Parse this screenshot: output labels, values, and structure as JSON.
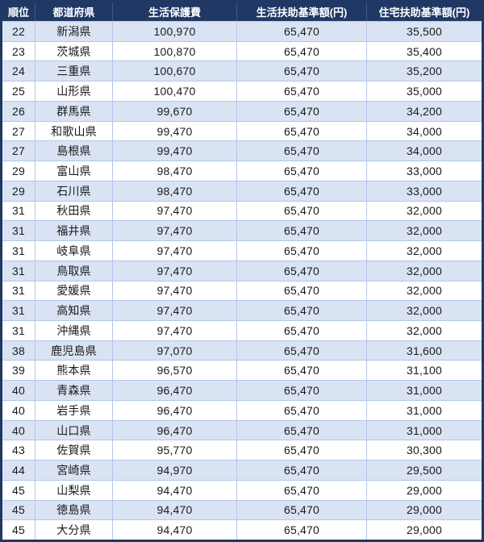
{
  "colors": {
    "navy": "#1f3864",
    "grid": "#b4c6e7",
    "row-alt": "#dae3f3",
    "row-plain": "#ffffff",
    "header-sep": "#3f5787",
    "body-text": "#1a1a1a"
  },
  "chart_data": {
    "type": "table",
    "columns": [
      "順位",
      "都道府県",
      "生活保護費",
      "生活扶助基準額(円)",
      "住宅扶助基準額(円)"
    ],
    "rows": [
      {
        "rank": "22",
        "pref": "新潟県",
        "hogo": "100,970",
        "fujo": "65,470",
        "jutaku": "35,500"
      },
      {
        "rank": "23",
        "pref": "茨城県",
        "hogo": "100,870",
        "fujo": "65,470",
        "jutaku": "35,400"
      },
      {
        "rank": "24",
        "pref": "三重県",
        "hogo": "100,670",
        "fujo": "65,470",
        "jutaku": "35,200"
      },
      {
        "rank": "25",
        "pref": "山形県",
        "hogo": "100,470",
        "fujo": "65,470",
        "jutaku": "35,000"
      },
      {
        "rank": "26",
        "pref": "群馬県",
        "hogo": "99,670",
        "fujo": "65,470",
        "jutaku": "34,200"
      },
      {
        "rank": "27",
        "pref": "和歌山県",
        "hogo": "99,470",
        "fujo": "65,470",
        "jutaku": "34,000"
      },
      {
        "rank": "27",
        "pref": "島根県",
        "hogo": "99,470",
        "fujo": "65,470",
        "jutaku": "34,000"
      },
      {
        "rank": "29",
        "pref": "富山県",
        "hogo": "98,470",
        "fujo": "65,470",
        "jutaku": "33,000"
      },
      {
        "rank": "29",
        "pref": "石川県",
        "hogo": "98,470",
        "fujo": "65,470",
        "jutaku": "33,000"
      },
      {
        "rank": "31",
        "pref": "秋田県",
        "hogo": "97,470",
        "fujo": "65,470",
        "jutaku": "32,000"
      },
      {
        "rank": "31",
        "pref": "福井県",
        "hogo": "97,470",
        "fujo": "65,470",
        "jutaku": "32,000"
      },
      {
        "rank": "31",
        "pref": "岐阜県",
        "hogo": "97,470",
        "fujo": "65,470",
        "jutaku": "32,000"
      },
      {
        "rank": "31",
        "pref": "鳥取県",
        "hogo": "97,470",
        "fujo": "65,470",
        "jutaku": "32,000"
      },
      {
        "rank": "31",
        "pref": "愛媛県",
        "hogo": "97,470",
        "fujo": "65,470",
        "jutaku": "32,000"
      },
      {
        "rank": "31",
        "pref": "高知県",
        "hogo": "97,470",
        "fujo": "65,470",
        "jutaku": "32,000"
      },
      {
        "rank": "31",
        "pref": "沖縄県",
        "hogo": "97,470",
        "fujo": "65,470",
        "jutaku": "32,000"
      },
      {
        "rank": "38",
        "pref": "鹿児島県",
        "hogo": "97,070",
        "fujo": "65,470",
        "jutaku": "31,600"
      },
      {
        "rank": "39",
        "pref": "熊本県",
        "hogo": "96,570",
        "fujo": "65,470",
        "jutaku": "31,100"
      },
      {
        "rank": "40",
        "pref": "青森県",
        "hogo": "96,470",
        "fujo": "65,470",
        "jutaku": "31,000"
      },
      {
        "rank": "40",
        "pref": "岩手県",
        "hogo": "96,470",
        "fujo": "65,470",
        "jutaku": "31,000"
      },
      {
        "rank": "40",
        "pref": "山口県",
        "hogo": "96,470",
        "fujo": "65,470",
        "jutaku": "31,000"
      },
      {
        "rank": "43",
        "pref": "佐賀県",
        "hogo": "95,770",
        "fujo": "65,470",
        "jutaku": "30,300"
      },
      {
        "rank": "44",
        "pref": "宮崎県",
        "hogo": "94,970",
        "fujo": "65,470",
        "jutaku": "29,500"
      },
      {
        "rank": "45",
        "pref": "山梨県",
        "hogo": "94,470",
        "fujo": "65,470",
        "jutaku": "29,000"
      },
      {
        "rank": "45",
        "pref": "徳島県",
        "hogo": "94,470",
        "fujo": "65,470",
        "jutaku": "29,000"
      },
      {
        "rank": "45",
        "pref": "大分県",
        "hogo": "94,470",
        "fujo": "65,470",
        "jutaku": "29,000"
      }
    ]
  }
}
